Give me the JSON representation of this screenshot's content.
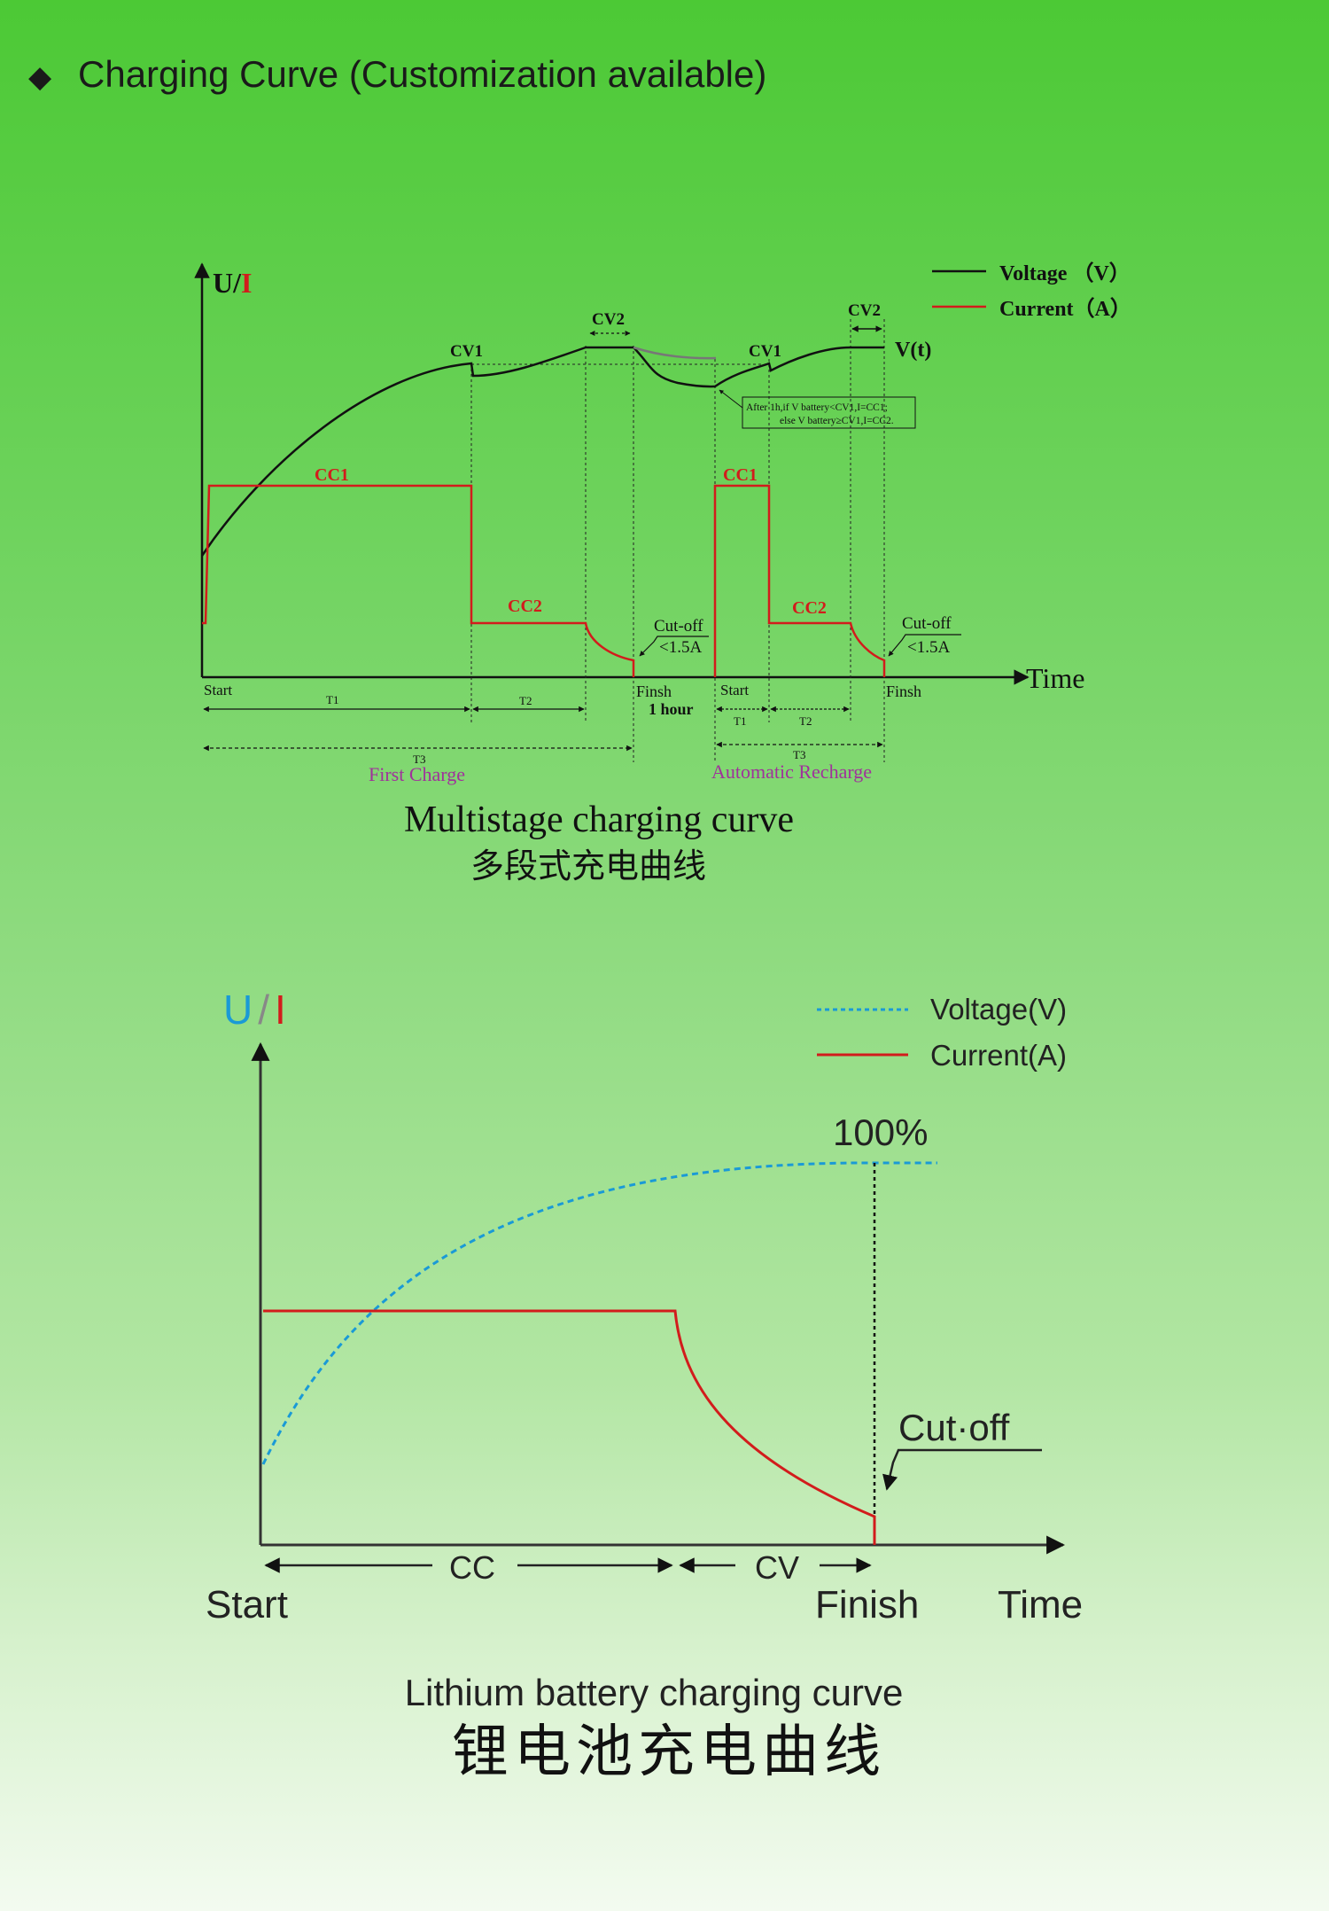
{
  "header": {
    "bullet": "◆",
    "title": "Charging Curve (Customization available)"
  },
  "multistage": {
    "y_axis": {
      "u": "U",
      "slash": "/",
      "i": "I"
    },
    "legend": {
      "voltage": "Voltage （V）",
      "current": "Current（A）"
    },
    "labels": {
      "cv1_a": "CV1",
      "cv2_a": "CV2",
      "cv1_b": "CV1",
      "cv2_b": "CV2",
      "vt": "V(t)",
      "cc1_a": "CC1",
      "cc2_a": "CC2",
      "cc1_b": "CC1",
      "cc2_b": "CC2",
      "cutoff_a": "Cut-off",
      "cutoff_a_val": "<1.5A",
      "cutoff_b": "Cut-off",
      "cutoff_b_val": "<1.5A",
      "note_line1": "After 1h,if V battery<CV1,I=CC1;",
      "note_line2": "else V battery≥CV1,I=CC2.",
      "time": "Time",
      "start_a": "Start",
      "finish_a": "Finsh",
      "one_hour": "1 hour",
      "start_b": "Start",
      "finish_b": "Finsh",
      "t1_a": "T1",
      "t2_a": "T2",
      "t3_a": "T3",
      "t1_b": "T1",
      "t2_b": "T2",
      "t3_b": "T3",
      "first_charge": "First Charge",
      "auto_recharge": "Automatic Recharge"
    },
    "caption_en": "Multistage charging curve",
    "caption_cn": "多段式充电曲线",
    "colors": {
      "voltage": "#111111",
      "current": "#d21c1c",
      "phase_label": "#a0329b"
    }
  },
  "lithium": {
    "y_axis": {
      "u": "U",
      "slash": "/",
      "i": "I"
    },
    "legend": {
      "voltage": "Voltage(V)",
      "current": "Current(A)"
    },
    "labels": {
      "full": "100%",
      "cutoff": "Cut·off",
      "cc": "CC",
      "cv": "CV",
      "start": "Start",
      "finish": "Finish",
      "time": "Time"
    },
    "caption_en": "Lithium battery charging curve",
    "caption_cn": "锂电池充电曲线",
    "colors": {
      "voltage": "#1a9ad6",
      "current": "#d21c1c"
    }
  }
}
